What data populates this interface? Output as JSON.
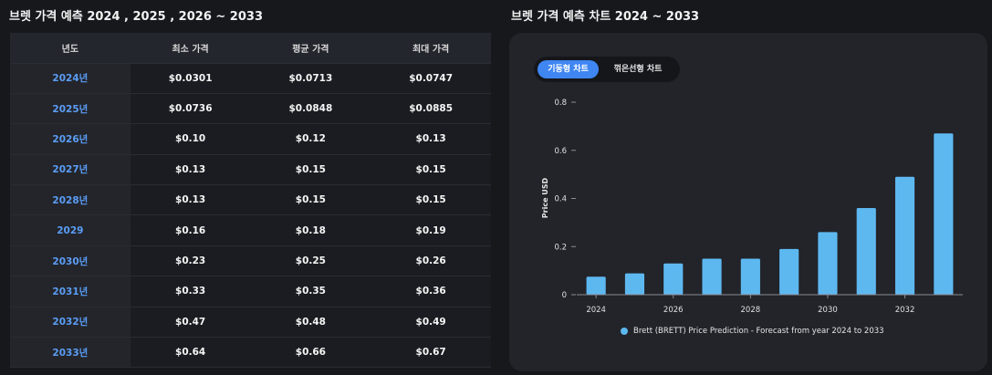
{
  "left_title": "브렛 가격 예측 2024 , 2025 , 2026 ~ 2033",
  "right_title": "브렛 가격 예측 차트 2024 ~ 2033",
  "table": {
    "headers": [
      "년도",
      "최소 가격",
      "평균 가격",
      "최대 가격"
    ],
    "rows": [
      {
        "year": "2024년",
        "min": "$0.0301",
        "avg": "$0.0713",
        "max": "$0.0747"
      },
      {
        "year": "2025년",
        "min": "$0.0736",
        "avg": "$0.0848",
        "max": "$0.0885"
      },
      {
        "year": "2026년",
        "min": "$0.10",
        "avg": "$0.12",
        "max": "$0.13"
      },
      {
        "year": "2027년",
        "min": "$0.13",
        "avg": "$0.15",
        "max": "$0.15"
      },
      {
        "year": "2028년",
        "min": "$0.13",
        "avg": "$0.15",
        "max": "$0.15"
      },
      {
        "year": "2029",
        "min": "$0.16",
        "avg": "$0.18",
        "max": "$0.19"
      },
      {
        "year": "2030년",
        "min": "$0.23",
        "avg": "$0.25",
        "max": "$0.26"
      },
      {
        "year": "2031년",
        "min": "$0.33",
        "avg": "$0.35",
        "max": "$0.36"
      },
      {
        "year": "2032년",
        "min": "$0.47",
        "avg": "$0.48",
        "max": "$0.49"
      },
      {
        "year": "2033년",
        "min": "$0.64",
        "avg": "$0.66",
        "max": "$0.67"
      }
    ]
  },
  "tabs": {
    "bar": "기둥형 차트",
    "line": "꺾은선형 차트",
    "active": "bar"
  },
  "colors": {
    "bar": "#5eb8f0",
    "accent": "#3f86f2",
    "year_text": "#5b9df5"
  },
  "chart_data": {
    "type": "bar",
    "categories": [
      "2024",
      "2025",
      "2026",
      "2027",
      "2028",
      "2029",
      "2030",
      "2031",
      "2032",
      "2033"
    ],
    "x_tick_labels": [
      "2024",
      "2026",
      "2028",
      "2030",
      "2032"
    ],
    "series": [
      {
        "name": "Brett (BRETT) Price Prediction - Forecast from year 2024 to 2033",
        "values": [
          0.0747,
          0.0885,
          0.13,
          0.15,
          0.15,
          0.19,
          0.26,
          0.36,
          0.49,
          0.67
        ]
      }
    ],
    "ylabel": "Price USD",
    "ylim": [
      0,
      0.8
    ],
    "y_ticks": [
      "0",
      "0.2",
      "0.4",
      "0.6",
      "0.8"
    ],
    "grid": false,
    "legend_position": "bottom"
  }
}
